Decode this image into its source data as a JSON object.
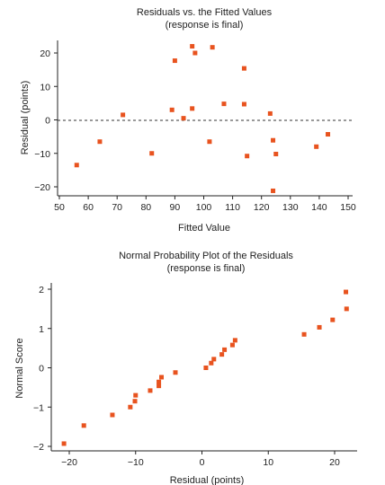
{
  "chart_data": [
    {
      "type": "scatter",
      "title": "Residuals vs. the Fitted Values",
      "subtitle": "(response is final)",
      "xlabel": "Fitted Value",
      "ylabel": "Residual (points)",
      "xlim": [
        50,
        150
      ],
      "ylim": [
        -22,
        24
      ],
      "xticks": [
        50,
        60,
        70,
        80,
        90,
        100,
        110,
        120,
        130,
        140,
        150
      ],
      "yticks": [
        -20,
        -10,
        0,
        10,
        20
      ],
      "reference_line": 0,
      "color": "#e8531f",
      "points": [
        {
          "x": 56,
          "y": -13.5
        },
        {
          "x": 64,
          "y": -6.5
        },
        {
          "x": 72,
          "y": 1.5
        },
        {
          "x": 82,
          "y": -10
        },
        {
          "x": 89,
          "y": 3
        },
        {
          "x": 90,
          "y": 17.7
        },
        {
          "x": 93,
          "y": 0.5
        },
        {
          "x": 96,
          "y": 3.4
        },
        {
          "x": 96,
          "y": 22
        },
        {
          "x": 97,
          "y": 20
        },
        {
          "x": 102,
          "y": -6.5
        },
        {
          "x": 103,
          "y": 21.7
        },
        {
          "x": 107,
          "y": 4.8
        },
        {
          "x": 114,
          "y": 15.4
        },
        {
          "x": 114,
          "y": 4.7
        },
        {
          "x": 115,
          "y": -10.8
        },
        {
          "x": 123,
          "y": 1.9
        },
        {
          "x": 124,
          "y": -6.1
        },
        {
          "x": 124,
          "y": -21.2
        },
        {
          "x": 125,
          "y": -10.2
        },
        {
          "x": 139,
          "y": -8
        },
        {
          "x": 143,
          "y": -4.3
        }
      ]
    },
    {
      "type": "scatter",
      "title": "Normal Probability Plot of the Residuals",
      "subtitle": "(response is final)",
      "xlabel": "Residual (points)",
      "ylabel": "Normal Score",
      "xlim": [
        -22,
        23
      ],
      "ylim": [
        -2.05,
        2.2
      ],
      "xticks": [
        -20,
        -10,
        0,
        10,
        20
      ],
      "yticks": [
        -2,
        -1,
        0,
        1,
        2
      ],
      "color": "#e8531f",
      "points": [
        {
          "x": -20.8,
          "y": -1.93
        },
        {
          "x": -17.8,
          "y": -1.47
        },
        {
          "x": -13.5,
          "y": -1.2
        },
        {
          "x": -10.8,
          "y": -1.0
        },
        {
          "x": -10.1,
          "y": -0.85
        },
        {
          "x": -10.0,
          "y": -0.7
        },
        {
          "x": -7.8,
          "y": -0.58
        },
        {
          "x": -6.5,
          "y": -0.46
        },
        {
          "x": -6.5,
          "y": -0.36
        },
        {
          "x": -6.1,
          "y": -0.24
        },
        {
          "x": -4.0,
          "y": -0.12
        },
        {
          "x": 0.6,
          "y": 0.0
        },
        {
          "x": 1.4,
          "y": 0.12
        },
        {
          "x": 1.8,
          "y": 0.22
        },
        {
          "x": 3.0,
          "y": 0.34
        },
        {
          "x": 3.4,
          "y": 0.46
        },
        {
          "x": 4.6,
          "y": 0.58
        },
        {
          "x": 5.0,
          "y": 0.7
        },
        {
          "x": 15.4,
          "y": 0.85
        },
        {
          "x": 17.7,
          "y": 1.03
        },
        {
          "x": 19.7,
          "y": 1.22
        },
        {
          "x": 21.8,
          "y": 1.5
        },
        {
          "x": 21.7,
          "y": 1.93
        }
      ]
    }
  ]
}
